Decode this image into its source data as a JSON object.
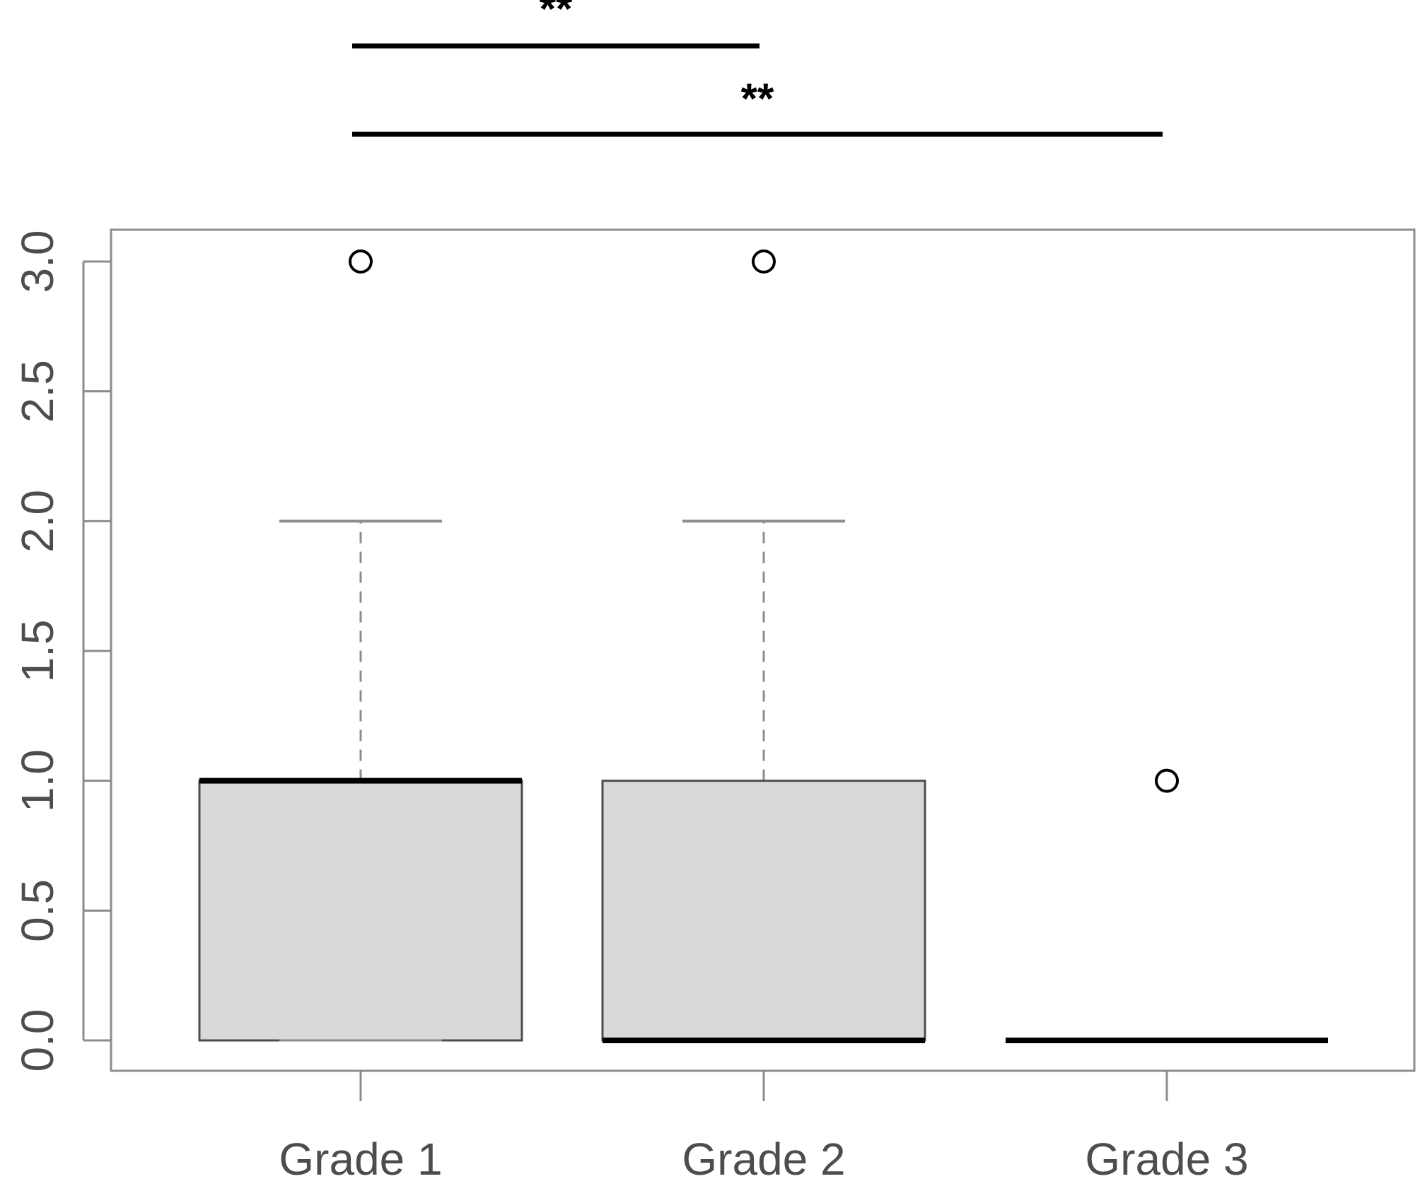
{
  "chart_data": {
    "type": "boxplot",
    "title": "",
    "xlabel": "",
    "ylabel": "",
    "ylim": [
      -0.12,
      3.12
    ],
    "y_ticks": [
      "0.0",
      "0.5",
      "1.0",
      "1.5",
      "2.0",
      "2.5",
      "3.0"
    ],
    "categories": [
      "Grade 1",
      "Grade 2",
      "Grade 3"
    ],
    "boxes": [
      {
        "category": "Grade 1",
        "whisker_low": 0,
        "q1": 0,
        "median": 1,
        "q3": 1,
        "whisker_high": 2,
        "outliers": [
          3
        ]
      },
      {
        "category": "Grade 2",
        "whisker_low": 0,
        "q1": 0,
        "median": 0,
        "q3": 1,
        "whisker_high": 2,
        "outliers": [
          3
        ]
      },
      {
        "category": "Grade 3",
        "whisker_low": 0,
        "q1": 0,
        "median": 0,
        "q3": 0,
        "whisker_high": 0,
        "outliers": [
          1
        ]
      }
    ],
    "significance_brackets": [
      {
        "from": "Grade 1",
        "to": "Grade 2",
        "label": "**"
      },
      {
        "from": "Grade 1",
        "to": "Grade 3",
        "label": "**"
      }
    ],
    "grid": false,
    "colors": {
      "box_fill": "#d9d9d9",
      "box_border": "#4d4d4d",
      "median": "#000000",
      "whisker": "#8c8c8c",
      "frame": "#8c8c8c",
      "text": "#4d4d4d",
      "bracket": "#000000"
    }
  }
}
